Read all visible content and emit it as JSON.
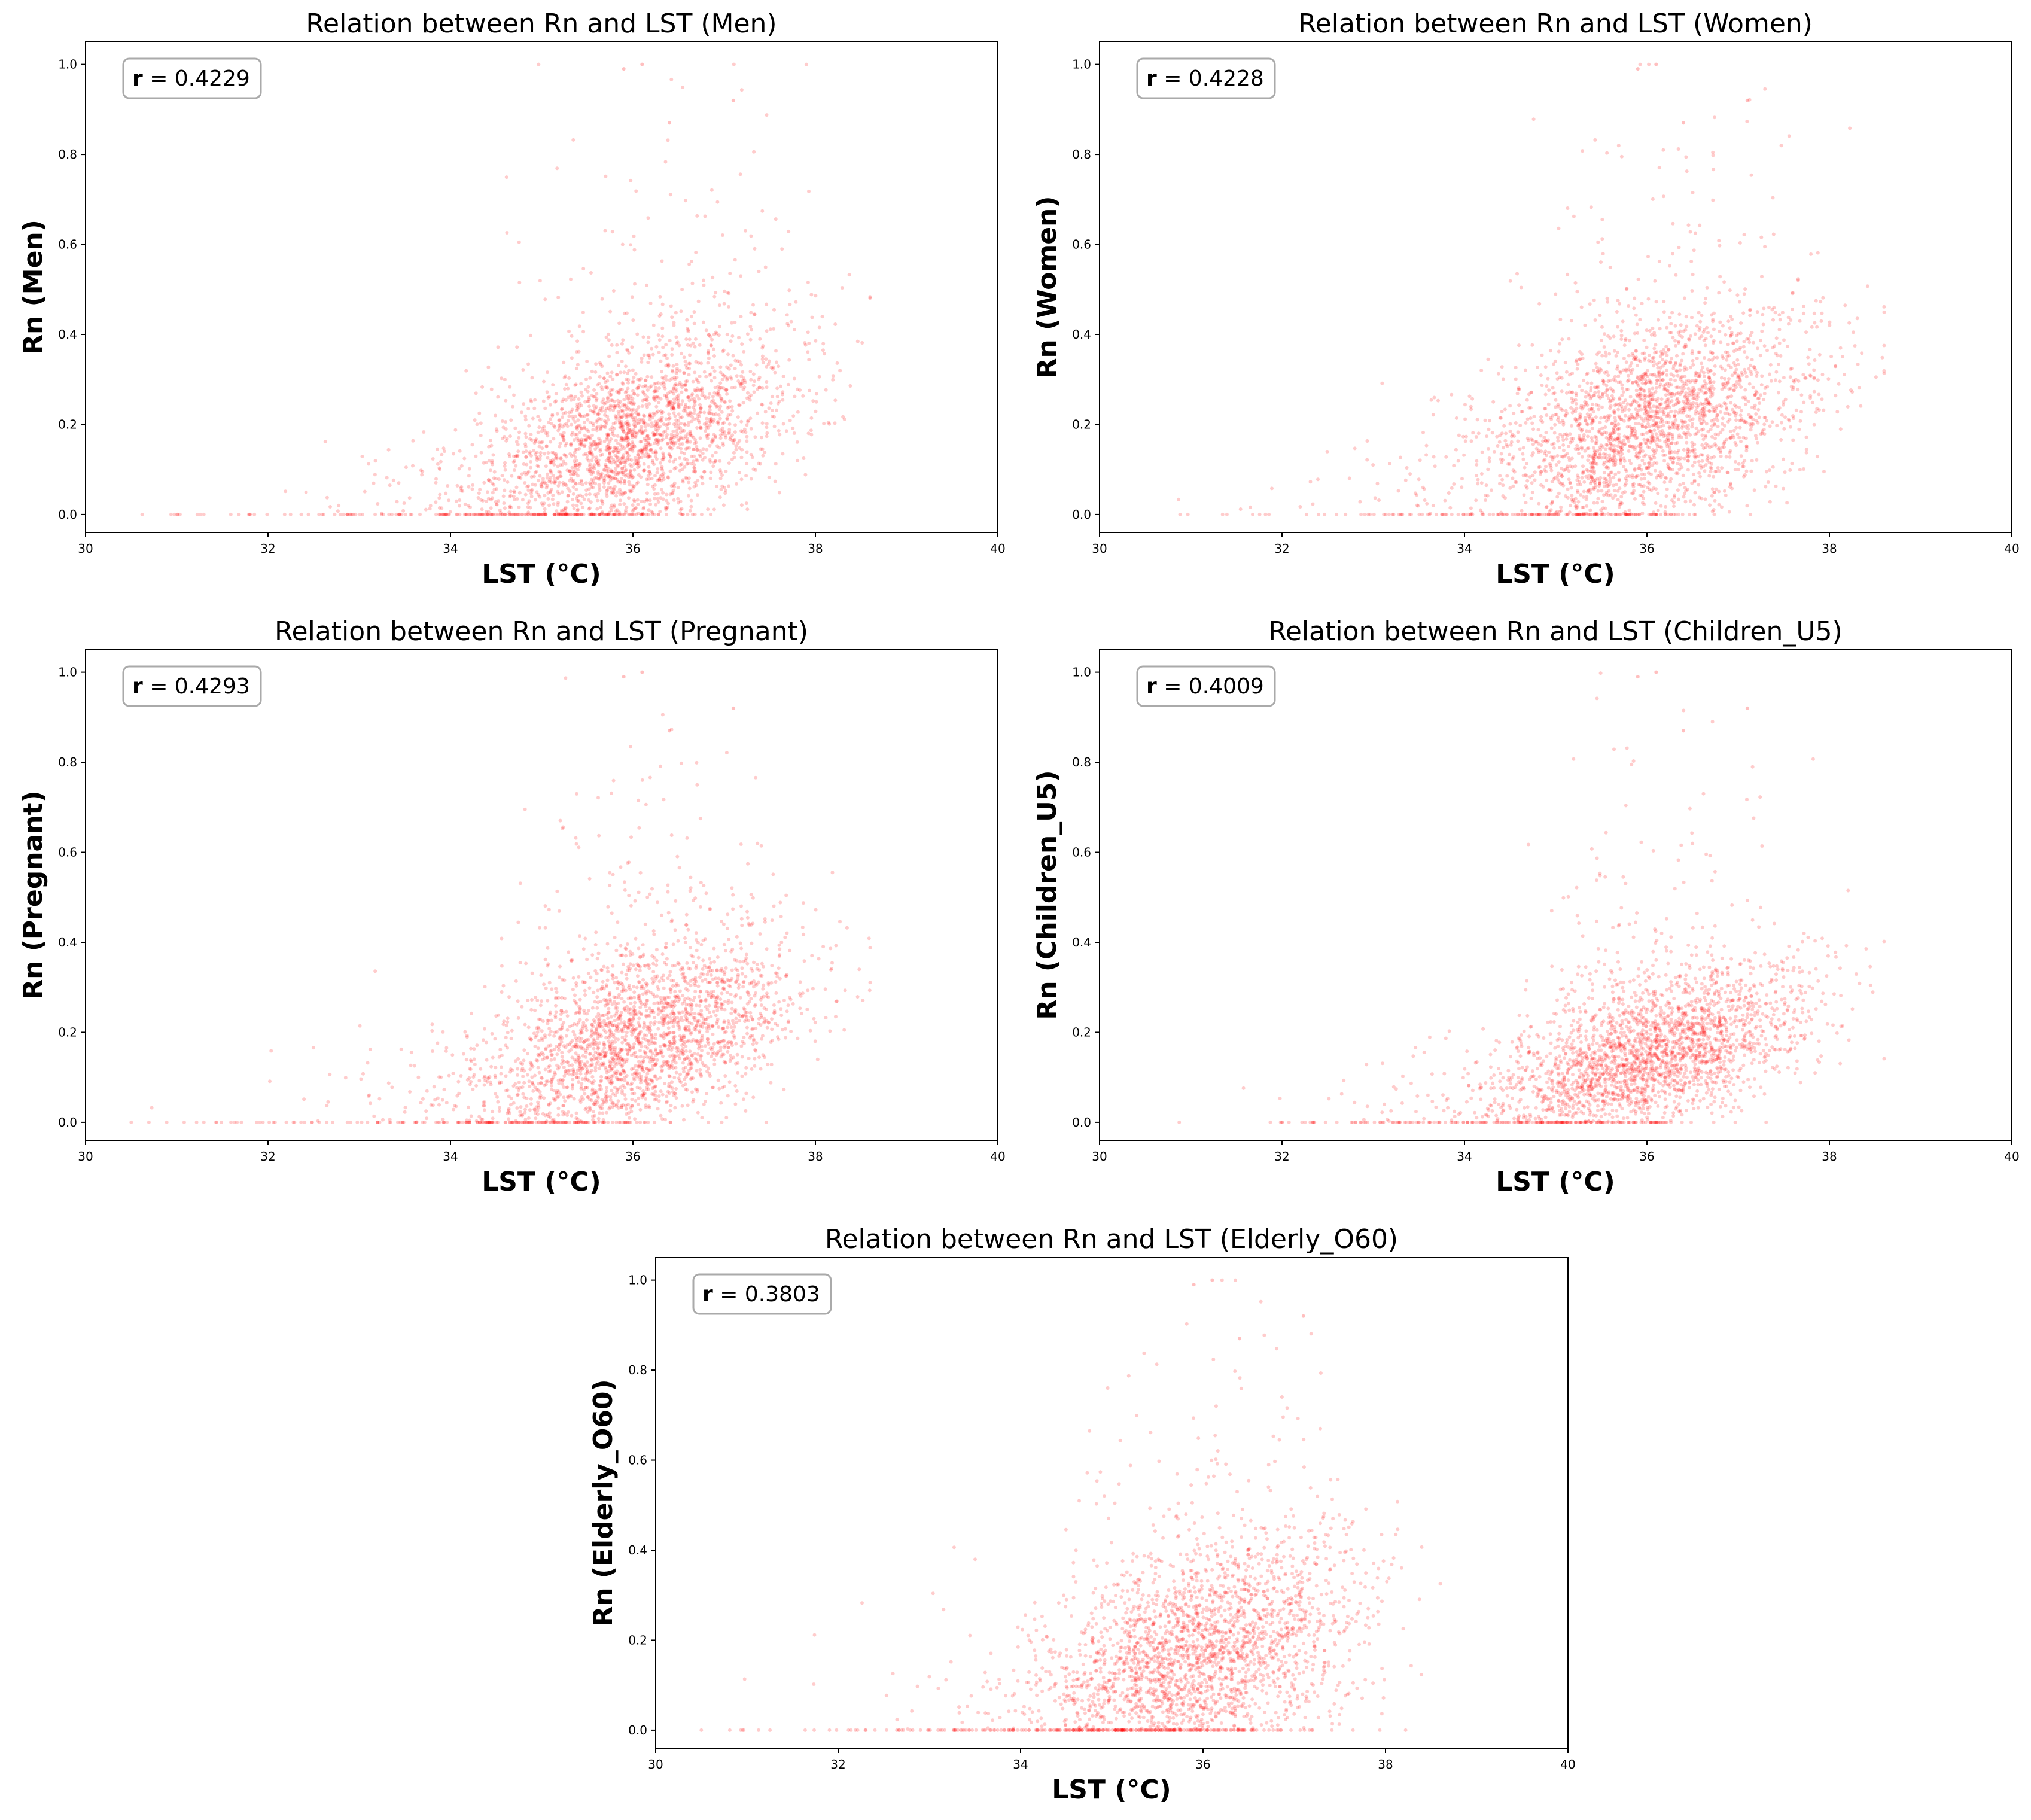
{
  "chart_data": [
    {
      "type": "scatter",
      "title": "Relation between Rn and LST (Men)",
      "xlabel": "LST (°C)",
      "ylabel": "Rn (Men)",
      "xlim": [
        30,
        40
      ],
      "ylim": [
        -0.04,
        1.05
      ],
      "xticks": [
        30,
        32,
        34,
        36,
        38,
        40
      ],
      "yticks": [
        0.0,
        0.2,
        0.4,
        0.6,
        0.8,
        1.0
      ],
      "annotation": {
        "var": "r",
        "eq": " = ",
        "value": "0.4229"
      },
      "color": "#ff0000",
      "distribution": {
        "x_center": 36.1,
        "x_spread": 0.85,
        "y_base": 0.17,
        "y_spread": 0.1,
        "correlation": 0.42,
        "x_min": 30.5,
        "x_max": 38.6,
        "y_max": 1.0
      }
    },
    {
      "type": "scatter",
      "title": "Relation between Rn and LST (Women)",
      "xlabel": "LST (°C)",
      "ylabel": "Rn (Women)",
      "xlim": [
        30,
        40
      ],
      "ylim": [
        -0.04,
        1.05
      ],
      "xticks": [
        30,
        32,
        34,
        36,
        38,
        40
      ],
      "yticks": [
        0.0,
        0.2,
        0.4,
        0.6,
        0.8,
        1.0
      ],
      "annotation": {
        "var": "r",
        "eq": " = ",
        "value": "0.4228"
      },
      "color": "#ff0000",
      "distribution": {
        "x_center": 36.1,
        "x_spread": 0.85,
        "y_base": 0.2,
        "y_spread": 0.11,
        "correlation": 0.42,
        "x_min": 30.5,
        "x_max": 38.6,
        "y_max": 1.0
      }
    },
    {
      "type": "scatter",
      "title": "Relation between Rn and LST (Pregnant)",
      "xlabel": "LST (°C)",
      "ylabel": "Rn (Pregnant)",
      "xlim": [
        30,
        40
      ],
      "ylim": [
        -0.04,
        1.05
      ],
      "xticks": [
        30,
        32,
        34,
        36,
        38,
        40
      ],
      "yticks": [
        0.0,
        0.2,
        0.4,
        0.6,
        0.8,
        1.0
      ],
      "annotation": {
        "var": "r",
        "eq": " = ",
        "value": "0.4293"
      },
      "color": "#ff0000",
      "distribution": {
        "x_center": 36.1,
        "x_spread": 0.85,
        "y_base": 0.18,
        "y_spread": 0.1,
        "correlation": 0.43,
        "x_min": 30.5,
        "x_max": 38.6,
        "y_max": 1.0
      }
    },
    {
      "type": "scatter",
      "title": "Relation between Rn and LST (Children_U5)",
      "xlabel": "LST (°C)",
      "ylabel": "Rn (Children_U5)",
      "xlim": [
        30,
        40
      ],
      "ylim": [
        -0.04,
        1.05
      ],
      "xticks": [
        30,
        32,
        34,
        36,
        38,
        40
      ],
      "yticks": [
        0.0,
        0.2,
        0.4,
        0.6,
        0.8,
        1.0
      ],
      "annotation": {
        "var": "r",
        "eq": " = ",
        "value": "0.4009"
      },
      "color": "#ff0000",
      "distribution": {
        "x_center": 36.1,
        "x_spread": 0.85,
        "y_base": 0.15,
        "y_spread": 0.08,
        "correlation": 0.4,
        "x_min": 30.5,
        "x_max": 38.6,
        "y_max": 1.0
      }
    },
    {
      "type": "scatter",
      "title": "Relation between Rn and LST (Elderly_O60)",
      "xlabel": "LST (°C)",
      "ylabel": "Rn (Elderly_O60)",
      "xlim": [
        30,
        40
      ],
      "ylim": [
        -0.04,
        1.05
      ],
      "xticks": [
        30,
        32,
        34,
        36,
        38,
        40
      ],
      "yticks": [
        0.0,
        0.2,
        0.4,
        0.6,
        0.8,
        1.0
      ],
      "annotation": {
        "var": "r",
        "eq": " = ",
        "value": "0.3803"
      },
      "color": "#ff0000",
      "distribution": {
        "x_center": 36.0,
        "x_spread": 0.85,
        "y_base": 0.17,
        "y_spread": 0.12,
        "correlation": 0.38,
        "x_min": 30.5,
        "x_max": 38.6,
        "y_max": 1.0
      }
    }
  ]
}
